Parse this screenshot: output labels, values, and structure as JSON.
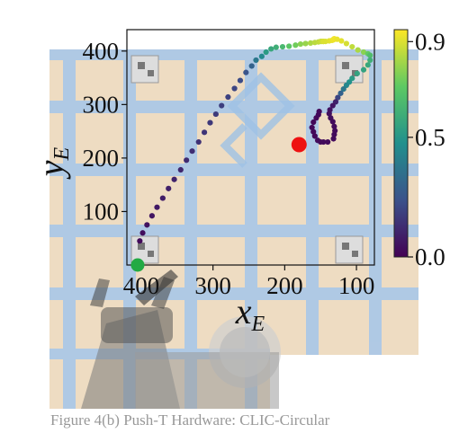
{
  "caption": "Figure 4(b) Push-T Hardware: CLIC-Circular",
  "colors": {
    "start_marker": "#22aa44",
    "goal_marker": "#ee1111",
    "colormap": [
      "#440154",
      "#3b528b",
      "#21908d",
      "#5dc963",
      "#fde725"
    ]
  },
  "scene_icons": [
    "marker-tag-icon",
    "robot-arm-icon",
    "t-block-target-icon"
  ],
  "chart_data": {
    "type": "scatter",
    "xlabel": "x_E",
    "ylabel": "y_E",
    "xlim": [
      420,
      75
    ],
    "ylim": [
      0,
      440
    ],
    "x_inverted": true,
    "xticks": [
      400,
      300,
      200,
      100
    ],
    "yticks": [
      100,
      200,
      300,
      400
    ],
    "colorbar": {
      "range": [
        0.0,
        0.95
      ],
      "ticks": [
        0.0,
        0.5,
        0.9
      ]
    },
    "start_point": {
      "x": 405,
      "y": 0
    },
    "goal_point": {
      "x": 180,
      "y": 225
    },
    "series": [
      {
        "x": [
          405,
          402,
          398,
          392,
          385,
          378,
          370,
          362,
          354,
          345,
          337,
          329,
          320,
          312,
          304,
          296,
          288,
          279,
          270,
          262,
          254,
          246,
          240,
          232,
          226,
          219,
          212,
          203,
          194,
          185,
          178,
          171,
          164,
          158,
          153,
          150,
          148,
          146,
          146,
          143,
          138,
          134,
          132,
          132,
          131,
          127,
          121,
          114,
          106,
          98,
          90,
          84,
          81,
          81,
          84,
          90,
          99,
          106,
          110,
          114,
          118,
          122,
          126,
          129,
          133,
          137,
          138,
          136,
          133,
          131,
          130,
          131,
          132,
          140,
          146,
          150,
          154,
          158,
          160,
          162,
          160,
          156,
          153,
          152
        ],
        "y": [
          0,
          45,
          60,
          75,
          92,
          108,
          125,
          143,
          160,
          178,
          196,
          213,
          230,
          248,
          266,
          282,
          298,
          314,
          330,
          345,
          360,
          372,
          383,
          390,
          398,
          404,
          407,
          408,
          409,
          411,
          413,
          414,
          415,
          416,
          417,
          418,
          418,
          418,
          418,
          418,
          419,
          420,
          421,
          422,
          423,
          422,
          419,
          414,
          408,
          402,
          398,
          395,
          392,
          383,
          374,
          365,
          358,
          349,
          342,
          336,
          329,
          321,
          313,
          305,
          298,
          290,
          283,
          275,
          268,
          259,
          251,
          244,
          236,
          230,
          230,
          230,
          233,
          241,
          249,
          257,
          267,
          275,
          281,
          287
        ],
        "values": [
          0.02,
          0.03,
          0.04,
          0.05,
          0.06,
          0.07,
          0.08,
          0.09,
          0.1,
          0.11,
          0.12,
          0.13,
          0.14,
          0.15,
          0.16,
          0.17,
          0.18,
          0.19,
          0.2,
          0.22,
          0.25,
          0.3,
          0.38,
          0.45,
          0.52,
          0.57,
          0.6,
          0.64,
          0.7,
          0.74,
          0.78,
          0.8,
          0.83,
          0.85,
          0.86,
          0.87,
          0.88,
          0.89,
          0.9,
          0.9,
          0.91,
          0.92,
          0.92,
          0.93,
          0.93,
          0.92,
          0.91,
          0.89,
          0.86,
          0.83,
          0.78,
          0.72,
          0.66,
          0.6,
          0.57,
          0.55,
          0.55,
          0.52,
          0.48,
          0.44,
          0.38,
          0.3,
          0.2,
          0.1,
          0.06,
          0.05,
          0.04,
          0.04,
          0.03,
          0.03,
          0.03,
          0.03,
          0.03,
          0.03,
          0.03,
          0.03,
          0.03,
          0.02,
          0.02,
          0.02,
          0.02,
          0.02,
          0.02,
          0.02
        ]
      }
    ]
  }
}
